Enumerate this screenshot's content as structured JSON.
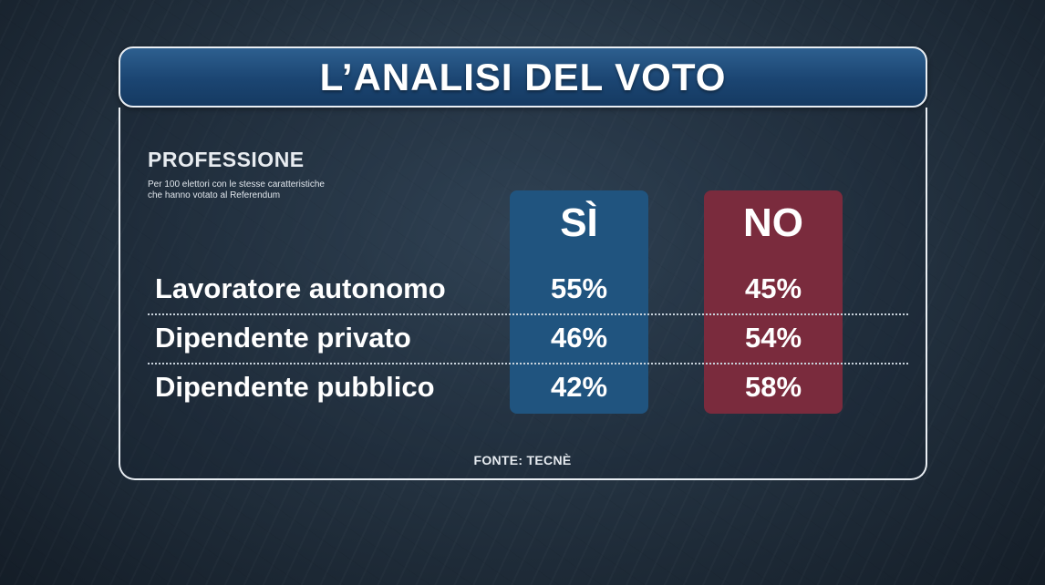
{
  "title": "L’ANALISI DEL VOTO",
  "section": {
    "title": "PROFESSIONE",
    "note_lines": [
      "Per 100 elettori con le stesse caratteristiche",
      "che hanno votato al Referendum"
    ]
  },
  "chart_data": {
    "type": "table",
    "columns": [
      "SÌ",
      "NO"
    ],
    "rows": [
      {
        "label": "Lavoratore autonomo",
        "values": [
          "55%",
          "45%"
        ]
      },
      {
        "label": "Dipendente privato",
        "values": [
          "46%",
          "54%"
        ]
      },
      {
        "label": "Dipendente pubblico",
        "values": [
          "42%",
          "58%"
        ]
      }
    ],
    "column_colors": [
      "#20547f",
      "#7a2b3d"
    ]
  },
  "source": "FONTE: TECNÈ"
}
